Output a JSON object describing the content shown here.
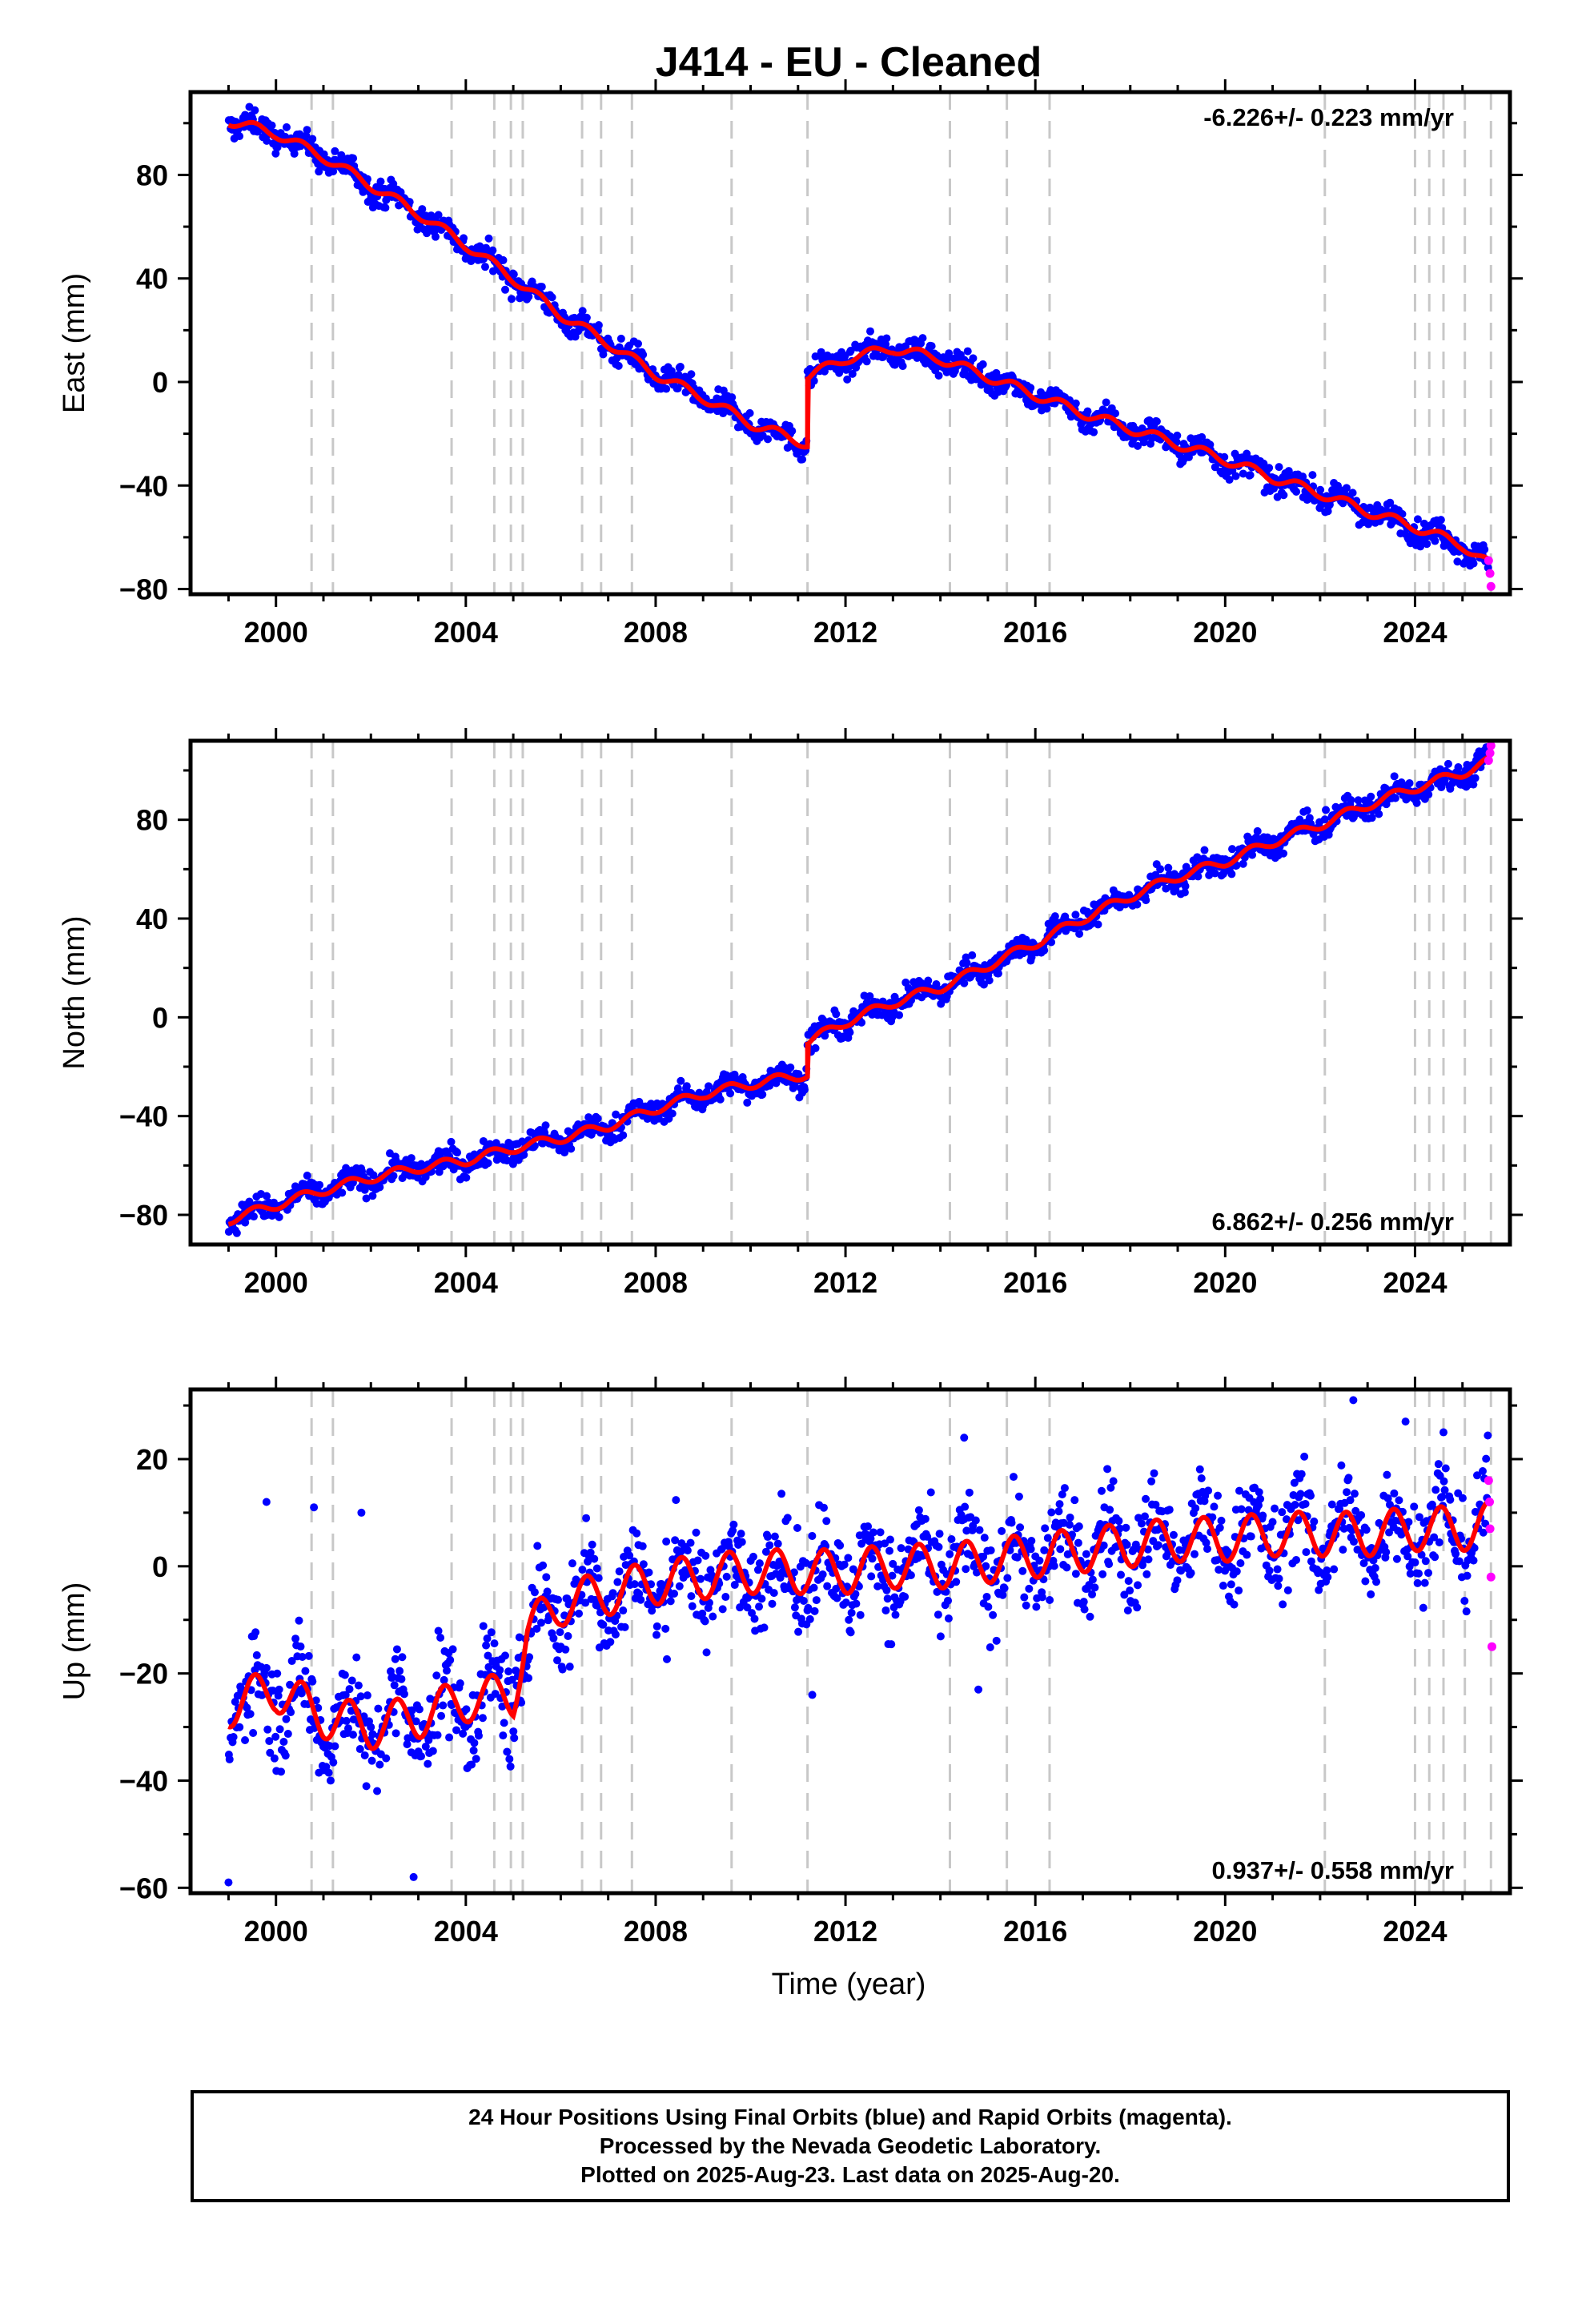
{
  "chart_data": {
    "type": "scatter",
    "title": "J414  - EU - Cleaned",
    "xlabel": "Time (year)",
    "xlim": [
      1998.2,
      2026.0
    ],
    "x_ticks": [
      "2000",
      "2004",
      "2008",
      "2012",
      "2016",
      "2020",
      "2024"
    ],
    "x_tick_values": [
      2000,
      2004,
      2008,
      2012,
      2016,
      2020,
      2024
    ],
    "equipment_change_years": [
      2000.75,
      2001.2,
      2003.7,
      2004.6,
      2004.95,
      2005.2,
      2006.45,
      2006.85,
      2007.5,
      2009.6,
      2011.2,
      2014.2,
      2015.4,
      2016.3,
      2022.1,
      2024.0,
      2024.3,
      2024.6,
      2025.05,
      2025.6
    ],
    "colors": {
      "final": "#0000ff",
      "rapid": "#ff00ff",
      "model": "#ff0000",
      "equip": "#c8c8c8"
    },
    "panels": [
      {
        "name": "east",
        "ylabel": "East (mm)",
        "ylim": [
          -82,
          112
        ],
        "y_ticks": [
          "80",
          "40",
          "0",
          "−40",
          "−80"
        ],
        "y_tick_values": [
          80,
          40,
          0,
          -40,
          -80
        ],
        "rate_label": "-6.226+/- 0.223 mm/yr",
        "rate_position": "top-right",
        "model": [
          [
            1999.0,
            101
          ],
          [
            2000.0,
            96
          ],
          [
            2001.0,
            87
          ],
          [
            2002.0,
            76
          ],
          [
            2003.0,
            65
          ],
          [
            2004.0,
            53
          ],
          [
            2005.0,
            40
          ],
          [
            2006.0,
            26
          ],
          [
            2007.0,
            15
          ],
          [
            2008.0,
            3
          ],
          [
            2009.0,
            -6
          ],
          [
            2010.0,
            -16
          ],
          [
            2011.2,
            -24
          ]
        ],
        "model_after": [
          [
            2011.2,
            2
          ],
          [
            2012.0,
            9
          ],
          [
            2013.0,
            13
          ],
          [
            2014.0,
            9
          ],
          [
            2015.0,
            2
          ],
          [
            2016.0,
            -5
          ],
          [
            2017.0,
            -12
          ],
          [
            2018.0,
            -18
          ],
          [
            2019.0,
            -24
          ],
          [
            2020.0,
            -30
          ],
          [
            2021.0,
            -37
          ],
          [
            2022.0,
            -43
          ],
          [
            2023.0,
            -50
          ],
          [
            2024.0,
            -56
          ],
          [
            2025.0,
            -63
          ],
          [
            2025.6,
            -71
          ]
        ],
        "noise": 3.5,
        "seasonal": 2.5,
        "rapid": [
          [
            2025.55,
            -69
          ],
          [
            2025.58,
            -74
          ],
          [
            2025.6,
            -79
          ]
        ]
      },
      {
        "name": "north",
        "ylabel": "North (mm)",
        "ylim": [
          -92,
          112
        ],
        "y_ticks": [
          "80",
          "40",
          "0",
          "−40",
          "−80"
        ],
        "y_tick_values": [
          80,
          40,
          0,
          -40,
          -80
        ],
        "rate_label": "6.862+/- 0.256 mm/yr",
        "rate_position": "bottom-right",
        "model": [
          [
            1999.0,
            -82
          ],
          [
            2000.0,
            -76
          ],
          [
            2001.0,
            -70
          ],
          [
            2002.0,
            -65
          ],
          [
            2003.0,
            -61
          ],
          [
            2004.0,
            -58
          ],
          [
            2005.0,
            -53
          ],
          [
            2006.0,
            -49
          ],
          [
            2007.0,
            -44
          ],
          [
            2008.0,
            -37
          ],
          [
            2009.0,
            -31
          ],
          [
            2010.0,
            -27
          ],
          [
            2011.2,
            -23
          ]
        ],
        "model_after": [
          [
            2011.2,
            -10
          ],
          [
            2012.0,
            -2
          ],
          [
            2013.0,
            6
          ],
          [
            2014.0,
            12
          ],
          [
            2015.0,
            21
          ],
          [
            2016.0,
            30
          ],
          [
            2017.0,
            40
          ],
          [
            2018.0,
            49
          ],
          [
            2019.0,
            57
          ],
          [
            2020.0,
            63
          ],
          [
            2021.0,
            71
          ],
          [
            2022.0,
            78
          ],
          [
            2023.0,
            86
          ],
          [
            2024.0,
            93
          ],
          [
            2025.0,
            99
          ],
          [
            2025.6,
            104
          ]
        ],
        "noise": 3.5,
        "seasonal": 2.5,
        "rapid": [
          [
            2025.55,
            104
          ],
          [
            2025.58,
            107
          ],
          [
            2025.6,
            110
          ]
        ]
      },
      {
        "name": "up",
        "ylabel": "Up (mm)",
        "ylim": [
          -61,
          33
        ],
        "y_ticks": [
          "20",
          "0",
          "−20",
          "−40",
          "−60"
        ],
        "y_tick_values": [
          20,
          0,
          -20,
          -40,
          -60
        ],
        "rate_label": "0.937+/- 0.558 mm/yr",
        "rate_position": "bottom-right",
        "model": [
          [
            1999.0,
            -26
          ],
          [
            2000.0,
            -23
          ],
          [
            2001.0,
            -28
          ],
          [
            2002.0,
            -30
          ],
          [
            2003.0,
            -28
          ],
          [
            2004.0,
            -25
          ],
          [
            2005.0,
            -24
          ],
          [
            2005.3,
            -12
          ],
          [
            2006.0,
            -7
          ],
          [
            2007.0,
            -5
          ],
          [
            2008.0,
            -3
          ],
          [
            2009.0,
            -2
          ],
          [
            2010.0,
            -1
          ],
          [
            2011.0,
            -1
          ],
          [
            2012.0,
            -1
          ],
          [
            2013.0,
            0
          ],
          [
            2014.0,
            0
          ],
          [
            2015.0,
            1
          ],
          [
            2016.0,
            2
          ],
          [
            2017.0,
            3
          ],
          [
            2018.0,
            4
          ],
          [
            2019.0,
            5
          ],
          [
            2020.0,
            5
          ],
          [
            2021.0,
            6
          ],
          [
            2022.0,
            6
          ],
          [
            2023.0,
            6
          ],
          [
            2024.0,
            7
          ],
          [
            2025.0,
            7
          ],
          [
            2025.6,
            8
          ]
        ],
        "model_after": [],
        "noise": 6.5,
        "seasonal": 5.5,
        "outliers": [
          [
            1999.0,
            -59
          ],
          [
            1999.8,
            12
          ],
          [
            2000.8,
            11
          ],
          [
            2001.8,
            10
          ],
          [
            2002.9,
            -58
          ],
          [
            2014.5,
            24
          ],
          [
            2022.7,
            31
          ],
          [
            2023.8,
            27
          ],
          [
            2024.6,
            25
          ],
          [
            2011.3,
            -24
          ],
          [
            2014.8,
            -23
          ]
        ],
        "rapid": [
          [
            2025.55,
            16
          ],
          [
            2025.57,
            12
          ],
          [
            2025.58,
            7
          ],
          [
            2025.6,
            -2
          ],
          [
            2025.62,
            -15
          ]
        ]
      }
    ]
  },
  "footer": {
    "line1": "24 Hour Positions Using Final Orbits (blue) and Rapid Orbits (magenta).",
    "line2": "Processed by the Nevada Geodetic Laboratory.",
    "line3": "Plotted on 2025-Aug-23. Last data on 2025-Aug-20."
  }
}
